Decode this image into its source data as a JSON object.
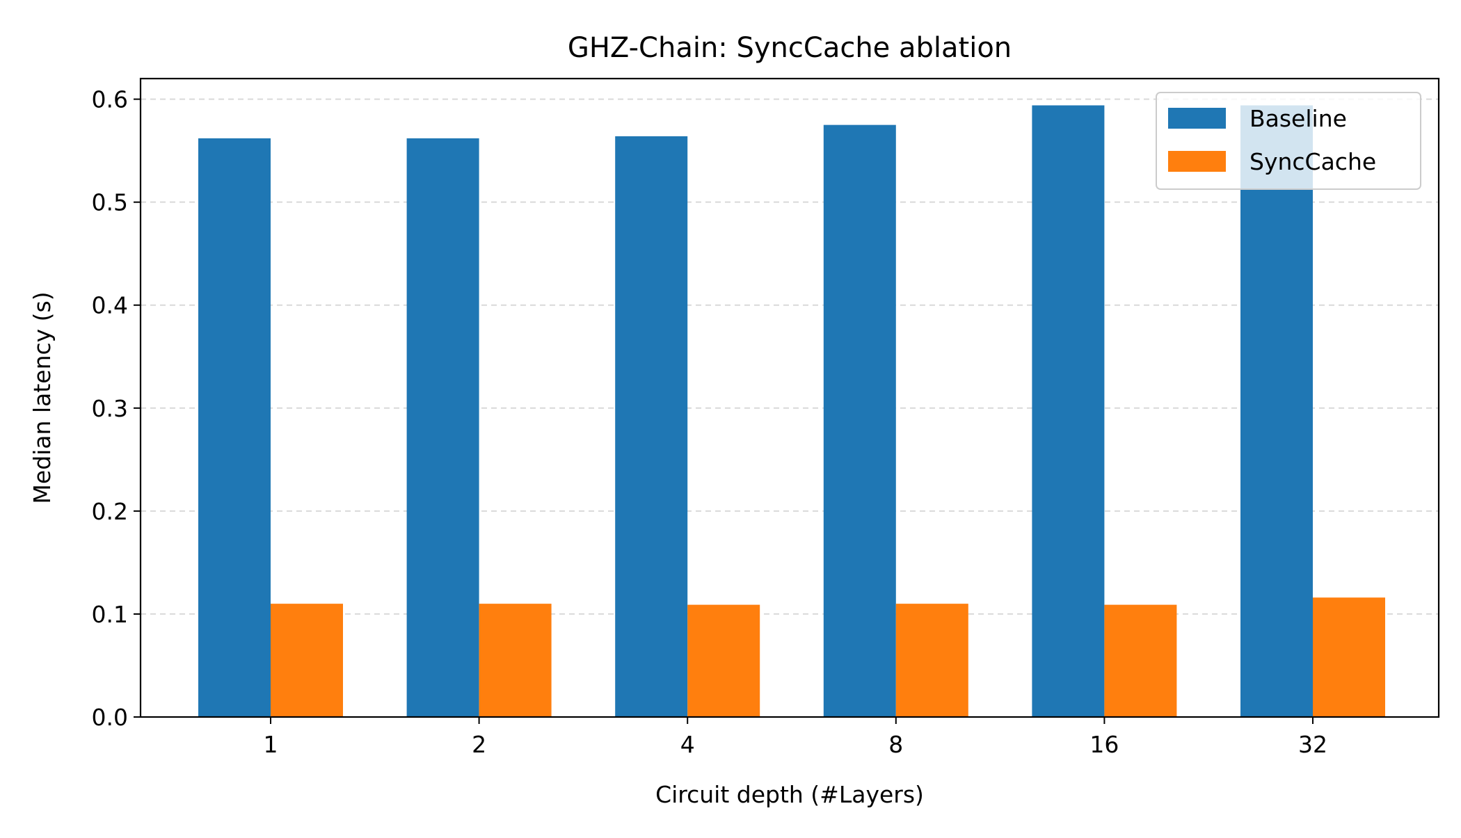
{
  "chart_data": {
    "type": "bar",
    "title": "GHZ-Chain: SyncCache ablation",
    "xlabel": "Circuit depth (#Layers)",
    "ylabel": "Median latency (s)",
    "categories": [
      "1",
      "2",
      "4",
      "8",
      "16",
      "32"
    ],
    "series": [
      {
        "name": "Baseline",
        "color": "#1f77b4",
        "values": [
          0.562,
          0.562,
          0.564,
          0.575,
          0.594,
          0.594
        ]
      },
      {
        "name": "SyncCache",
        "color": "#ff7f0e",
        "values": [
          0.11,
          0.11,
          0.109,
          0.11,
          0.109,
          0.116
        ]
      }
    ],
    "ylim": [
      0,
      0.62
    ],
    "yticks": [
      "0.0",
      "0.1",
      "0.2",
      "0.3",
      "0.4",
      "0.5",
      "0.6"
    ],
    "grid": "y-dashed",
    "legend": "top-right"
  }
}
